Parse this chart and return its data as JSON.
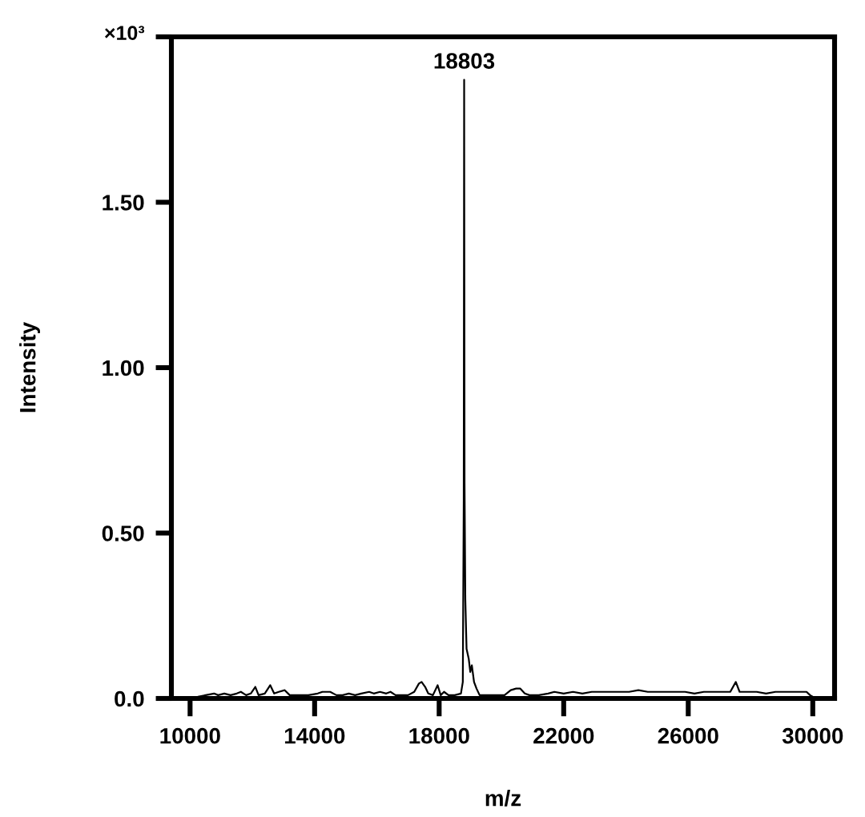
{
  "chart_data": {
    "type": "line",
    "xlabel": "m/z",
    "ylabel": "Intensity",
    "x": [
      10200,
      10257,
      10500,
      10772,
      10900,
      11100,
      11300,
      11500,
      11632,
      11800,
      11950,
      12096,
      12200,
      12400,
      12575,
      12700,
      12850,
      13040,
      13200,
      13500,
      13800,
      14100,
      14250,
      14378,
      14500,
      14700,
      14900,
      15100,
      15300,
      15500,
      15752,
      15900,
      16100,
      16300,
      16437,
      16600,
      16800,
      17000,
      17200,
      17350,
      17436,
      17550,
      17650,
      17800,
      17951,
      18050,
      18157,
      18300,
      18500,
      18700,
      18760,
      18790,
      18803,
      18815,
      18840,
      18880,
      18950,
      19000,
      19050,
      19120,
      19200,
      19300,
      19500,
      19800,
      20100,
      20300,
      20473,
      20600,
      20750,
      20900,
      21200,
      21500,
      21700,
      22000,
      22300,
      22600,
      22900,
      23200,
      23500,
      23800,
      24100,
      24400,
      24700,
      25000,
      25300,
      25600,
      25900,
      26200,
      26500,
      26800,
      27100,
      27350,
      27528,
      27650,
      27900,
      28200,
      28500,
      28800,
      29100,
      29400,
      29600,
      29800,
      29913,
      30000
    ],
    "series": [
      {
        "color": "#000000",
        "values": [
          0.0,
          0.005,
          0.01,
          0.015,
          0.01,
          0.015,
          0.01,
          0.015,
          0.02,
          0.01,
          0.015,
          0.035,
          0.01,
          0.015,
          0.04,
          0.015,
          0.02,
          0.025,
          0.01,
          0.01,
          0.01,
          0.015,
          0.02,
          0.02,
          0.02,
          0.01,
          0.01,
          0.015,
          0.01,
          0.015,
          0.02,
          0.015,
          0.02,
          0.015,
          0.02,
          0.01,
          0.01,
          0.01,
          0.02,
          0.045,
          0.05,
          0.035,
          0.015,
          0.01,
          0.04,
          0.01,
          0.02,
          0.01,
          0.01,
          0.015,
          0.05,
          0.6,
          1.87,
          0.65,
          0.3,
          0.15,
          0.12,
          0.08,
          0.1,
          0.05,
          0.03,
          0.01,
          0.01,
          0.01,
          0.01,
          0.025,
          0.03,
          0.03,
          0.015,
          0.01,
          0.01,
          0.015,
          0.02,
          0.015,
          0.02,
          0.015,
          0.02,
          0.02,
          0.02,
          0.02,
          0.02,
          0.025,
          0.02,
          0.02,
          0.02,
          0.02,
          0.02,
          0.015,
          0.02,
          0.02,
          0.02,
          0.02,
          0.05,
          0.02,
          0.02,
          0.02,
          0.015,
          0.02,
          0.02,
          0.02,
          0.02,
          0.02,
          0.01,
          0.005
        ]
      }
    ],
    "xlim": [
      9400,
      30700
    ],
    "xticks": [
      10000,
      14000,
      18000,
      22000,
      26000,
      30000
    ],
    "ylim": [
      0,
      2.0
    ],
    "yticks": [
      {
        "value": 0,
        "label": "0.0"
      },
      {
        "value": 0.5,
        "label": "0.50"
      },
      {
        "value": 1.0,
        "label": "1.00"
      },
      {
        "value": 1.5,
        "label": "1.50"
      },
      {
        "value": 2.0,
        "label": null
      }
    ],
    "annotations": [
      {
        "text": "18803",
        "x": 18803,
        "y": 1.87
      },
      "×10³"
    ]
  }
}
